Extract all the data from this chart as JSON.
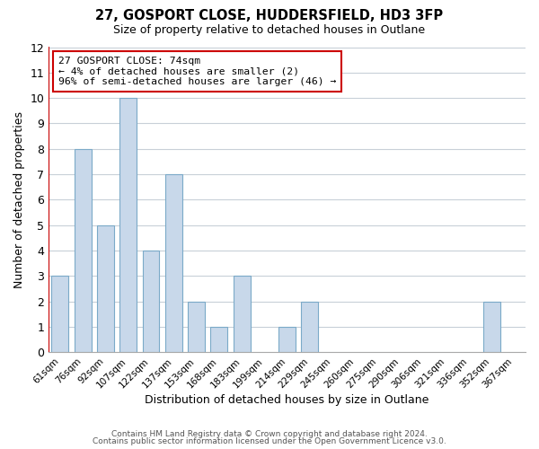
{
  "title": "27, GOSPORT CLOSE, HUDDERSFIELD, HD3 3FP",
  "subtitle": "Size of property relative to detached houses in Outlane",
  "xlabel": "Distribution of detached houses by size in Outlane",
  "ylabel": "Number of detached properties",
  "bin_labels": [
    "61sqm",
    "76sqm",
    "92sqm",
    "107sqm",
    "122sqm",
    "137sqm",
    "153sqm",
    "168sqm",
    "183sqm",
    "199sqm",
    "214sqm",
    "229sqm",
    "245sqm",
    "260sqm",
    "275sqm",
    "290sqm",
    "306sqm",
    "321sqm",
    "336sqm",
    "352sqm",
    "367sqm"
  ],
  "bar_values": [
    3,
    8,
    5,
    10,
    4,
    7,
    2,
    1,
    3,
    0,
    1,
    2,
    0,
    0,
    0,
    0,
    0,
    0,
    0,
    2,
    0
  ],
  "bar_color": "#c8d8ea",
  "bar_edge_color": "#7baac8",
  "ylim": [
    0,
    12
  ],
  "yticks": [
    0,
    1,
    2,
    3,
    4,
    5,
    6,
    7,
    8,
    9,
    10,
    11,
    12
  ],
  "annotation_box_text": "27 GOSPORT CLOSE: 74sqm\n← 4% of detached houses are smaller (2)\n96% of semi-detached houses are larger (46) →",
  "annotation_box_color": "#ffffff",
  "annotation_box_edge_color": "#cc0000",
  "marker_line_color": "#cc0000",
  "footer_line1": "Contains HM Land Registry data © Crown copyright and database right 2024.",
  "footer_line2": "Contains public sector information licensed under the Open Government Licence v3.0.",
  "background_color": "#ffffff",
  "grid_color": "#c8d0d8"
}
